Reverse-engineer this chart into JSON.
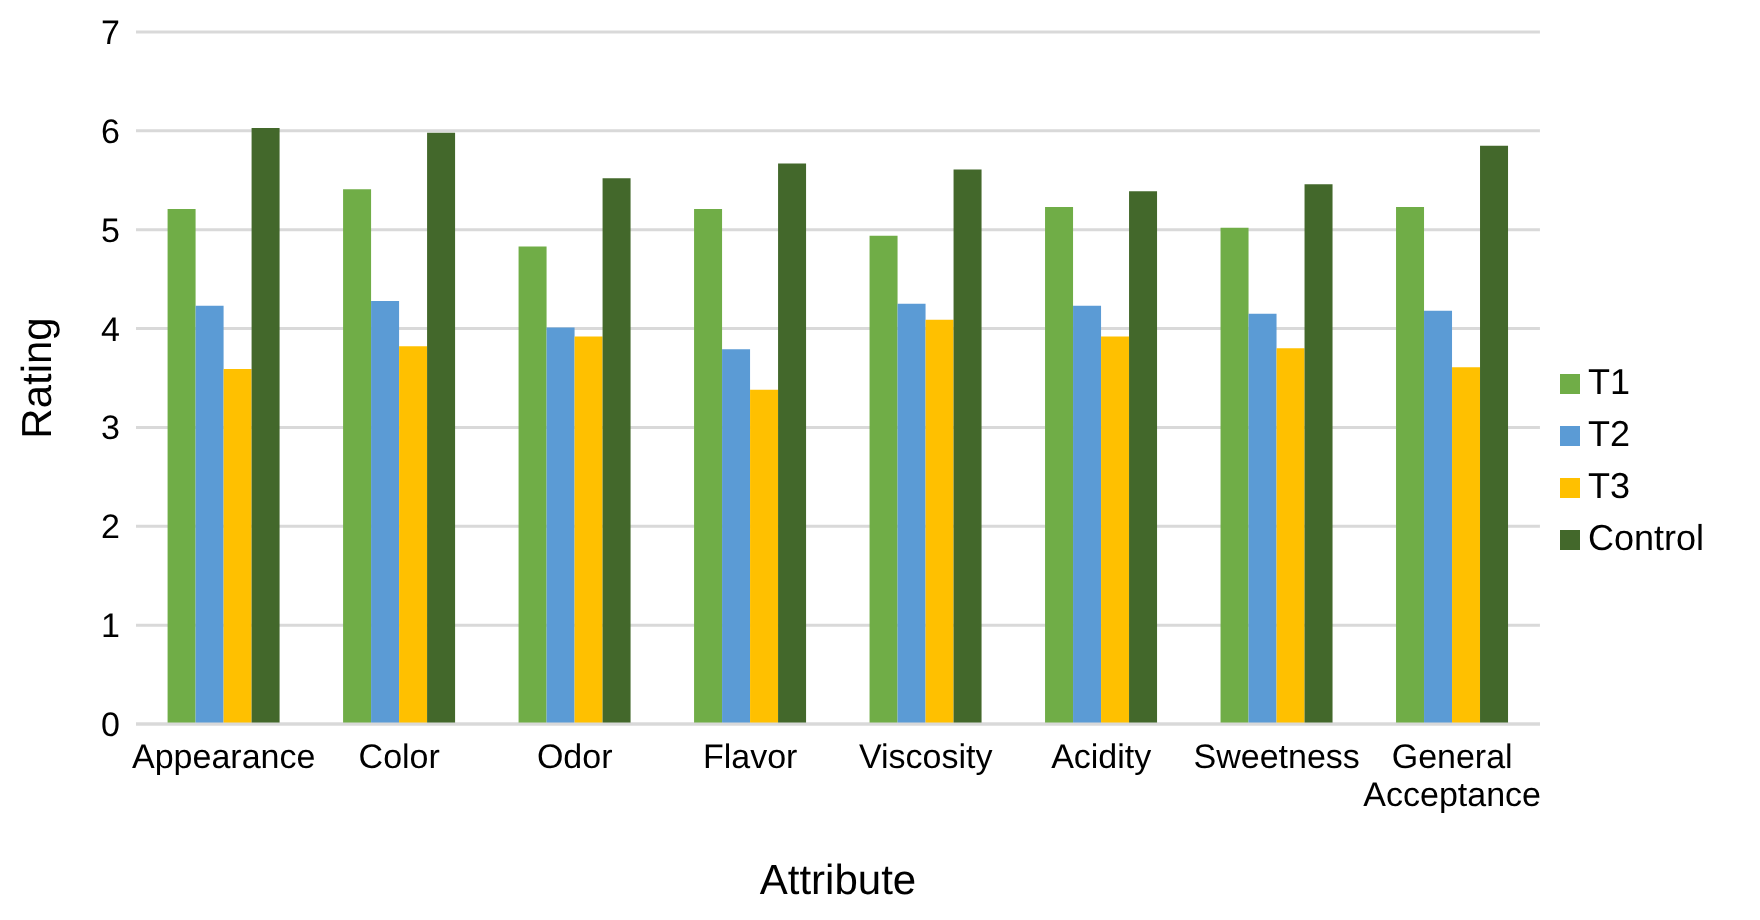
{
  "chart_data": {
    "type": "bar",
    "xlabel": "Attribute",
    "ylabel": "Rating",
    "categories": [
      "Appearance",
      "Color",
      "Odor",
      "Flavor",
      "Viscosity",
      "Acidity",
      "Sweetness",
      "General Acceptance"
    ],
    "series": [
      {
        "name": "T1",
        "color": "#70ad47",
        "values": [
          5.21,
          5.41,
          4.83,
          5.21,
          4.94,
          5.23,
          5.02,
          5.23
        ]
      },
      {
        "name": "T2",
        "color": "#5b9bd5",
        "values": [
          4.23,
          4.28,
          4.01,
          3.79,
          4.25,
          4.23,
          4.15,
          4.18
        ]
      },
      {
        "name": "T3",
        "color": "#ffc000",
        "values": [
          3.59,
          3.82,
          3.92,
          3.38,
          4.09,
          3.92,
          3.8,
          3.61
        ]
      },
      {
        "name": "Control",
        "color": "#43682b",
        "values": [
          6.03,
          5.98,
          5.52,
          5.67,
          5.61,
          5.39,
          5.46,
          5.85
        ]
      }
    ],
    "ylim": [
      0,
      7
    ],
    "yticks": [
      0,
      1,
      2,
      3,
      4,
      5,
      6,
      7
    ],
    "grid": "y",
    "legend": "right"
  }
}
